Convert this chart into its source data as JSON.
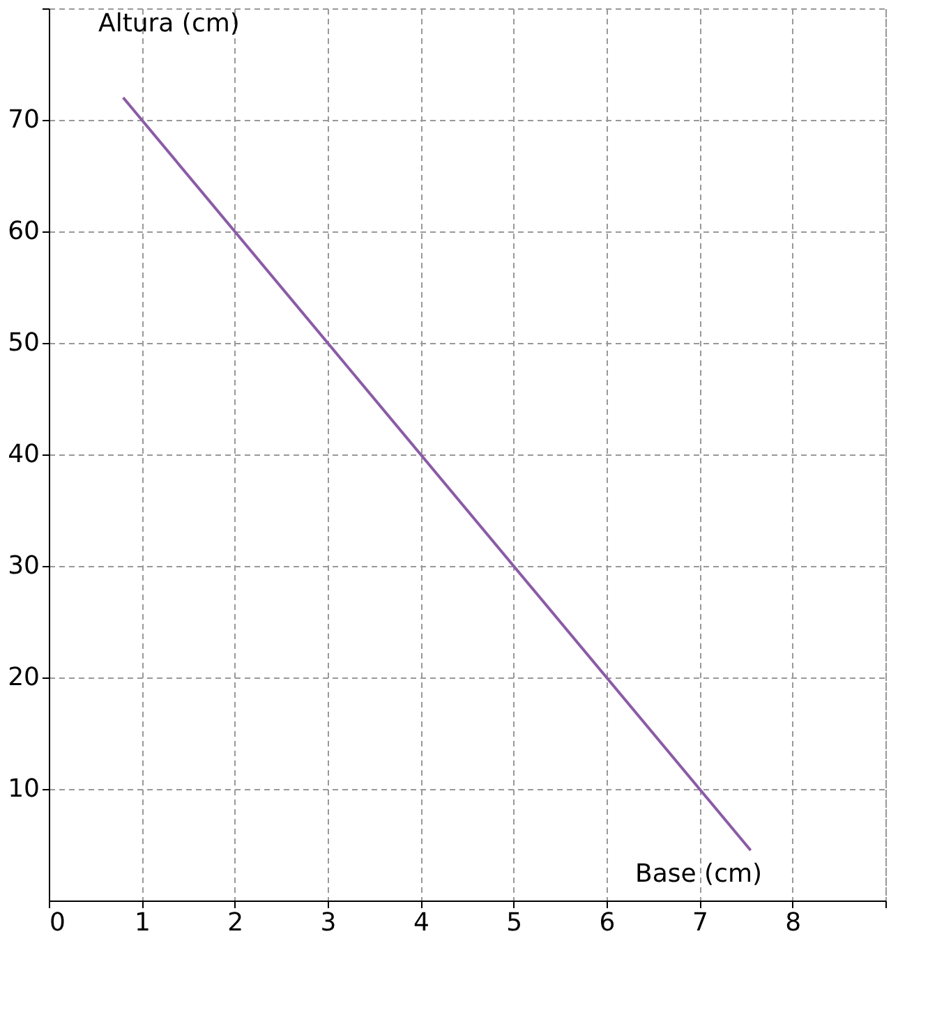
{
  "chart_data": {
    "type": "line",
    "xlabel": "Base (cm)",
    "ylabel": "Altura (cm)",
    "x": [
      0.8,
      7.55
    ],
    "series": [
      {
        "color": "#8b5ba6",
        "values": [
          72,
          4.5
        ]
      }
    ],
    "xlim": [
      0,
      9
    ],
    "ylim": [
      0,
      80
    ],
    "xticks": [
      0,
      1,
      2,
      3,
      4,
      5,
      6,
      7,
      8,
      {
        "value": 9,
        "label": null
      }
    ],
    "yticks": [
      10,
      20,
      30,
      40,
      50,
      60,
      70,
      {
        "value": 80,
        "label": null
      }
    ],
    "grid": true,
    "marker": "none",
    "line_style": "solid"
  }
}
